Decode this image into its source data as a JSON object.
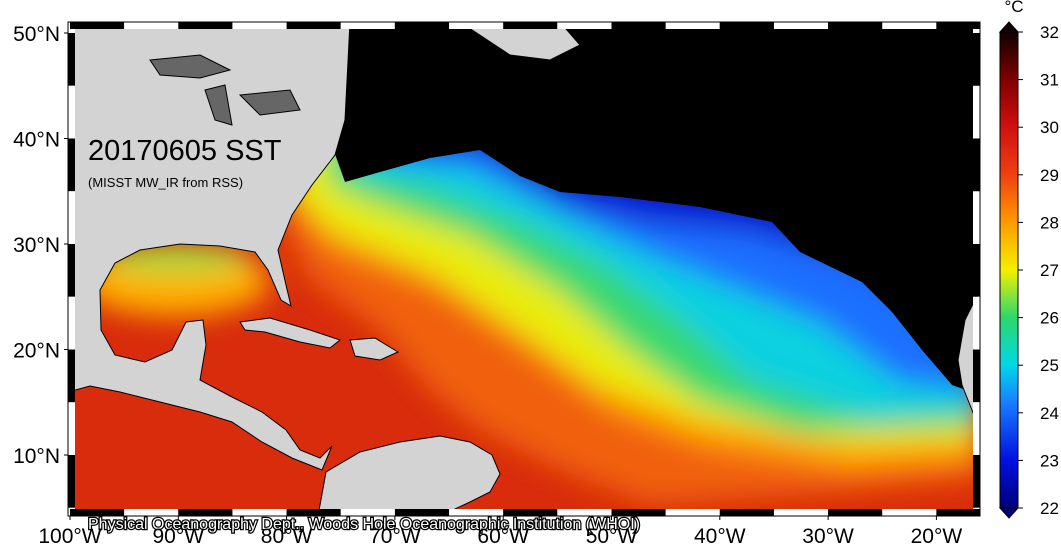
{
  "map": {
    "title": "20170605 SST",
    "subtitle": "(MISST MW_IR from RSS)",
    "credit": "Physical Oceanography Dept., Woods Hole Oceanographic Institution (WHOI)",
    "lat_labels": [
      "50°N",
      "40°N",
      "30°N",
      "20°N",
      "10°N"
    ],
    "lon_labels": [
      "100°W",
      "90°W",
      "80°W",
      "70°W",
      "60°W",
      "50°W",
      "40°W",
      "30°W",
      "20°W"
    ]
  },
  "colorbar": {
    "unit": "°C",
    "range": [
      22,
      32
    ],
    "ticks": [
      22,
      23,
      24,
      25,
      26,
      27,
      28,
      29,
      30,
      31,
      32
    ]
  }
}
